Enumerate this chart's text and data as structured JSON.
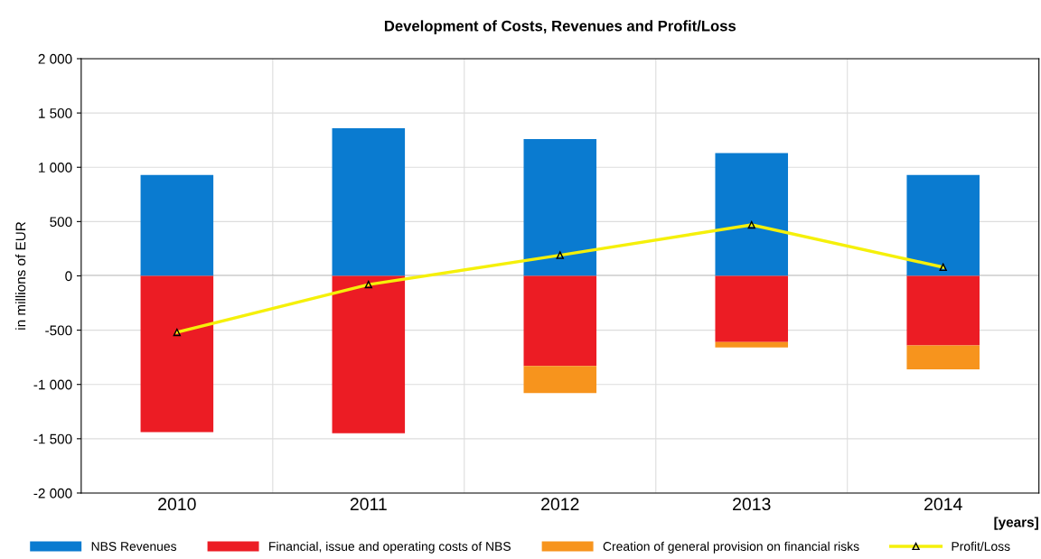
{
  "chart_data": {
    "type": "bar",
    "title": "Development of Costs, Revenues and Profit/Loss",
    "ylabel": "in millions of EUR",
    "xlabel": "[years]",
    "categories": [
      "2010",
      "2011",
      "2012",
      "2013",
      "2014"
    ],
    "stacked": true,
    "series": [
      {
        "name": "NBS Revenues",
        "color": "#0a7bd0",
        "values": [
          930,
          1360,
          1260,
          1130,
          930
        ]
      },
      {
        "name": "Financial, issue and operating costs of NBS",
        "color": "#ec1c24",
        "values": [
          -1440,
          -1450,
          -830,
          -610,
          -640
        ]
      },
      {
        "name": "Creation of general provision on financial risks",
        "color": "#f7941d",
        "values": [
          0,
          0,
          -250,
          -50,
          -220
        ]
      },
      {
        "name": "Profit/Loss",
        "type": "line",
        "color": "#f5f00a",
        "marker": "triangle",
        "values": [
          -520,
          -80,
          190,
          470,
          80
        ]
      }
    ],
    "ylim": [
      -2000,
      2000
    ],
    "yticks": [
      {
        "value": -2000,
        "label": "-2 000"
      },
      {
        "value": -1500,
        "label": "-1 500"
      },
      {
        "value": -1000,
        "label": "-1 000"
      },
      -500,
      0,
      500,
      {
        "value": 1000,
        "label": "1 000"
      },
      {
        "value": 1500,
        "label": "1 500"
      },
      {
        "value": 2000,
        "label": "2 000"
      }
    ],
    "ref_lines": [
      {
        "axis": "y",
        "value": 0,
        "color": "#555555"
      }
    ],
    "grid": true,
    "legend": "bottom"
  }
}
